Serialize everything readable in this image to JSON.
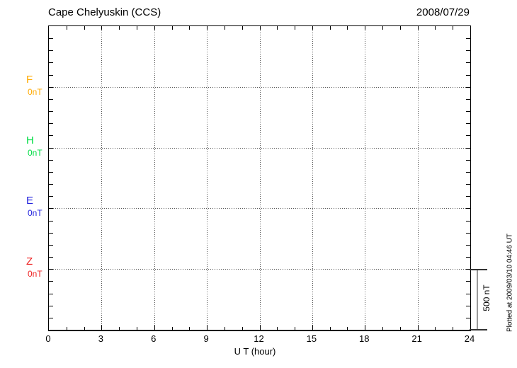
{
  "header": {
    "title": "Cape Chelyuskin (CCS)",
    "date": "2008/07/29"
  },
  "x_axis": {
    "label": "U T (hour)",
    "tick_labels": [
      "0",
      "3",
      "6",
      "9",
      "12",
      "15",
      "18",
      "21",
      "24"
    ]
  },
  "scale_bar": {
    "label": "500 nT"
  },
  "footer": {
    "plotted_at": "Plotted at 2009/03/10 04:46 UT"
  },
  "chart_data": {
    "type": "line",
    "title": "Cape Chelyuskin (CCS)",
    "station": "Cape Chelyuskin",
    "station_code": "CCS",
    "date": "2008/07/29",
    "xlabel": "U T (hour)",
    "x_range": [
      0,
      24
    ],
    "x_major_ticks": [
      0,
      3,
      6,
      9,
      12,
      15,
      18,
      21,
      24
    ],
    "x_minor_tick_step_hours": 1,
    "grid": {
      "vertical_at_hours": [
        3,
        6,
        9,
        12,
        15,
        18,
        21
      ],
      "horizontal_at_series_baselines": true
    },
    "y_axis": {
      "divisions": 5,
      "minor_ticks_per_division": 5,
      "nT_per_division": 500,
      "nT_per_minor_tick": 100
    },
    "scale_bar": {
      "label": "500 nT",
      "span_divisions": 1
    },
    "series": [
      {
        "name": "F",
        "baseline_label": "0nT",
        "color": "#FFAA00",
        "baseline_division": 1,
        "values": []
      },
      {
        "name": "H",
        "baseline_label": "0nT",
        "color": "#00DD44",
        "baseline_division": 2,
        "values": []
      },
      {
        "name": "E",
        "baseline_label": "0nT",
        "color": "#2222DD",
        "baseline_division": 3,
        "values": []
      },
      {
        "name": "Z",
        "baseline_label": "0nT",
        "color": "#EE2222",
        "baseline_division": 4,
        "values": []
      }
    ],
    "annotations": [
      "Plotted at 2009/03/10 04:46 UT"
    ],
    "legend_position": "left-of-plot"
  }
}
